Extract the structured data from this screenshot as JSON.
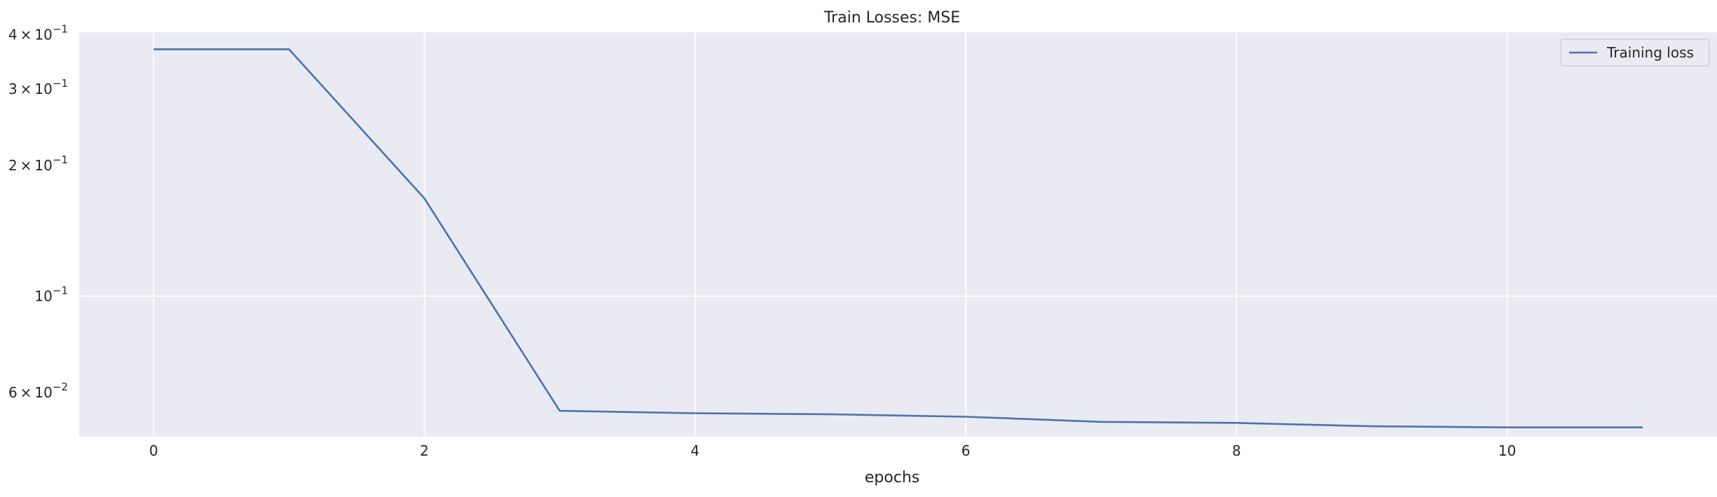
{
  "chart_data": {
    "type": "line",
    "title": "Train Losses:  MSE",
    "xlabel": "epochs",
    "ylabel": "",
    "yscale": "log",
    "xlim": [
      -0.55,
      11.55
    ],
    "ylim": [
      0.0475,
      0.405
    ],
    "x_ticks": [
      0,
      2,
      4,
      6,
      8,
      10
    ],
    "x_tick_labels": [
      "0",
      "2",
      "4",
      "6",
      "8",
      "10"
    ],
    "y_ticks": [
      {
        "value": 0.4,
        "mantissa": "4",
        "exponent": "−1"
      },
      {
        "value": 0.3,
        "mantissa": "3",
        "exponent": "−1"
      },
      {
        "value": 0.2,
        "mantissa": "2",
        "exponent": "−1"
      },
      {
        "value": 0.1,
        "mantissa": "",
        "exponent": "−1"
      },
      {
        "value": 0.06,
        "mantissa": "6",
        "exponent": "−2"
      }
    ],
    "y_gridlines": [
      0.1
    ],
    "x_gridlines": [
      0,
      2,
      4,
      6,
      8,
      10
    ],
    "grid": true,
    "legend_position": "top-right",
    "series": [
      {
        "name": "Training loss",
        "color": "#4c72b0",
        "x": [
          0,
          1,
          2,
          3,
          4,
          5,
          6,
          7,
          8,
          9,
          10,
          11
        ],
        "values": [
          0.37,
          0.37,
          0.168,
          0.0545,
          0.0538,
          0.0535,
          0.0528,
          0.0514,
          0.0511,
          0.0502,
          0.0499,
          0.0499
        ]
      }
    ],
    "colors": {
      "plot_background": "#eaeaf2",
      "grid": "#ffffff",
      "text": "#262626"
    }
  }
}
